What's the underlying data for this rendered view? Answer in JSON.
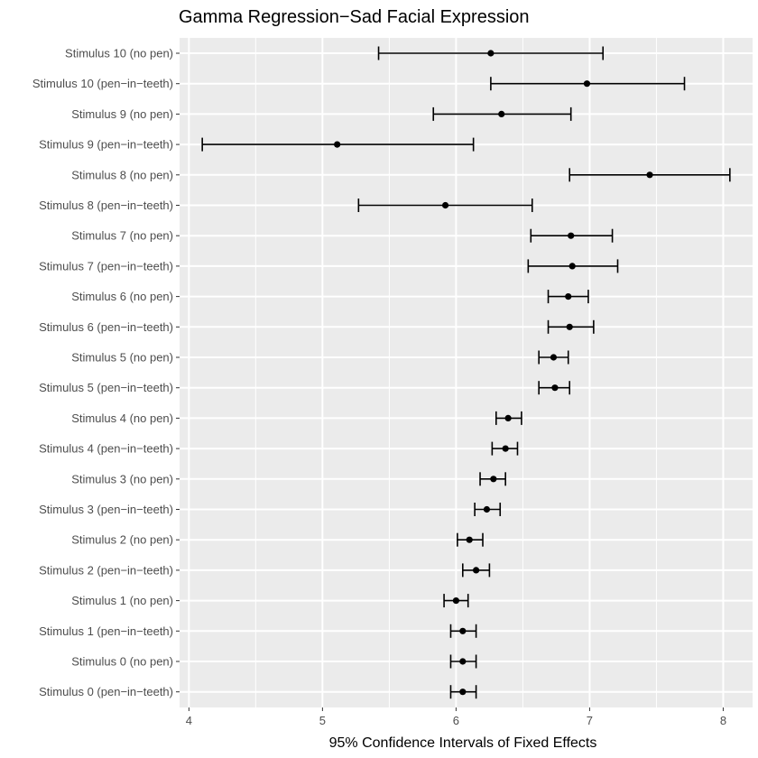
{
  "chart_data": {
    "type": "errorbar",
    "title": "Gamma Regression−Sad Facial Expression",
    "xlabel": "95% Confidence Intervals of Fixed Effects",
    "ylabel": "",
    "xlim": [
      3.93,
      8.22
    ],
    "xticks": [
      4,
      5,
      6,
      7,
      8
    ],
    "xtick_labels": [
      "4",
      "5",
      "6",
      "7",
      "8"
    ],
    "grid": true,
    "categories": [
      "Stimulus 10 (no pen)",
      "Stimulus 10 (pen−in−teeth)",
      "Stimulus 9 (no pen)",
      "Stimulus 9 (pen−in−teeth)",
      "Stimulus 8 (no pen)",
      "Stimulus 8 (pen−in−teeth)",
      "Stimulus 7 (no pen)",
      "Stimulus 7 (pen−in−teeth)",
      "Stimulus 6 (no pen)",
      "Stimulus 6 (pen−in−teeth)",
      "Stimulus 5 (no pen)",
      "Stimulus 5 (pen−in−teeth)",
      "Stimulus 4 (no pen)",
      "Stimulus 4 (pen−in−teeth)",
      "Stimulus 3 (no pen)",
      "Stimulus 3 (pen−in−teeth)",
      "Stimulus 2 (no pen)",
      "Stimulus 2 (pen−in−teeth)",
      "Stimulus 1 (no pen)",
      "Stimulus 1 (pen−in−teeth)",
      "Stimulus 0 (no pen)",
      "Stimulus 0 (pen−in−teeth)"
    ],
    "estimates": [
      6.26,
      6.98,
      6.34,
      5.11,
      7.45,
      5.92,
      6.86,
      6.87,
      6.84,
      6.85,
      6.73,
      6.74,
      6.39,
      6.37,
      6.28,
      6.23,
      6.1,
      6.15,
      6.0,
      6.05,
      6.05,
      6.05
    ],
    "lower": [
      5.42,
      6.26,
      5.83,
      4.1,
      6.85,
      5.27,
      6.56,
      6.54,
      6.69,
      6.69,
      6.62,
      6.62,
      6.3,
      6.27,
      6.18,
      6.14,
      6.01,
      6.05,
      5.91,
      5.96,
      5.96,
      5.96
    ],
    "upper": [
      7.1,
      7.71,
      6.86,
      6.13,
      8.05,
      6.57,
      7.17,
      7.21,
      6.99,
      7.03,
      6.84,
      6.85,
      6.49,
      6.46,
      6.37,
      6.33,
      6.2,
      6.25,
      6.09,
      6.15,
      6.15,
      6.15
    ]
  }
}
